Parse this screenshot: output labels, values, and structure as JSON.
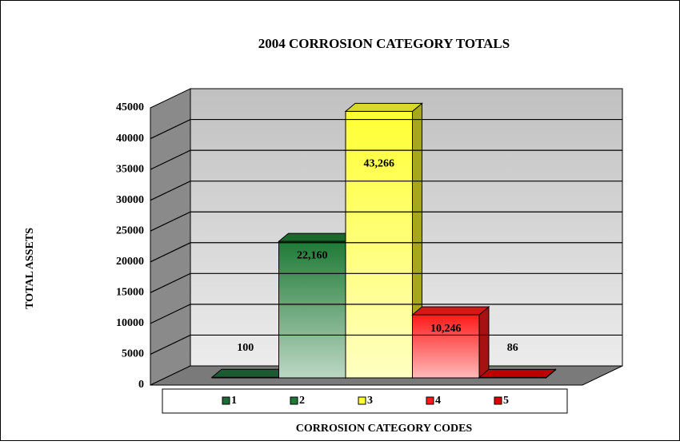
{
  "chart_data": {
    "type": "bar3d",
    "title": "2004 CORROSION CATEGORY TOTALS",
    "xlabel": "CORROSION CATEGORY CODES",
    "ylabel": "TOTAL ASSETS",
    "categories": [
      "1",
      "2",
      "3",
      "4",
      "5"
    ],
    "values": [
      100,
      22160,
      43266,
      10246,
      86
    ],
    "value_labels": [
      "100",
      "22,160",
      "43,266",
      "10,246",
      "86"
    ],
    "colors": [
      "#1e6b3a",
      "#1e7a36",
      "#ffff33",
      "#ff1a1a",
      "#e00000"
    ],
    "ylim": [
      0,
      45000
    ],
    "yticks": [
      0,
      5000,
      10000,
      15000,
      20000,
      25000,
      30000,
      35000,
      40000,
      45000
    ],
    "grid": true,
    "legend": "bottom"
  }
}
